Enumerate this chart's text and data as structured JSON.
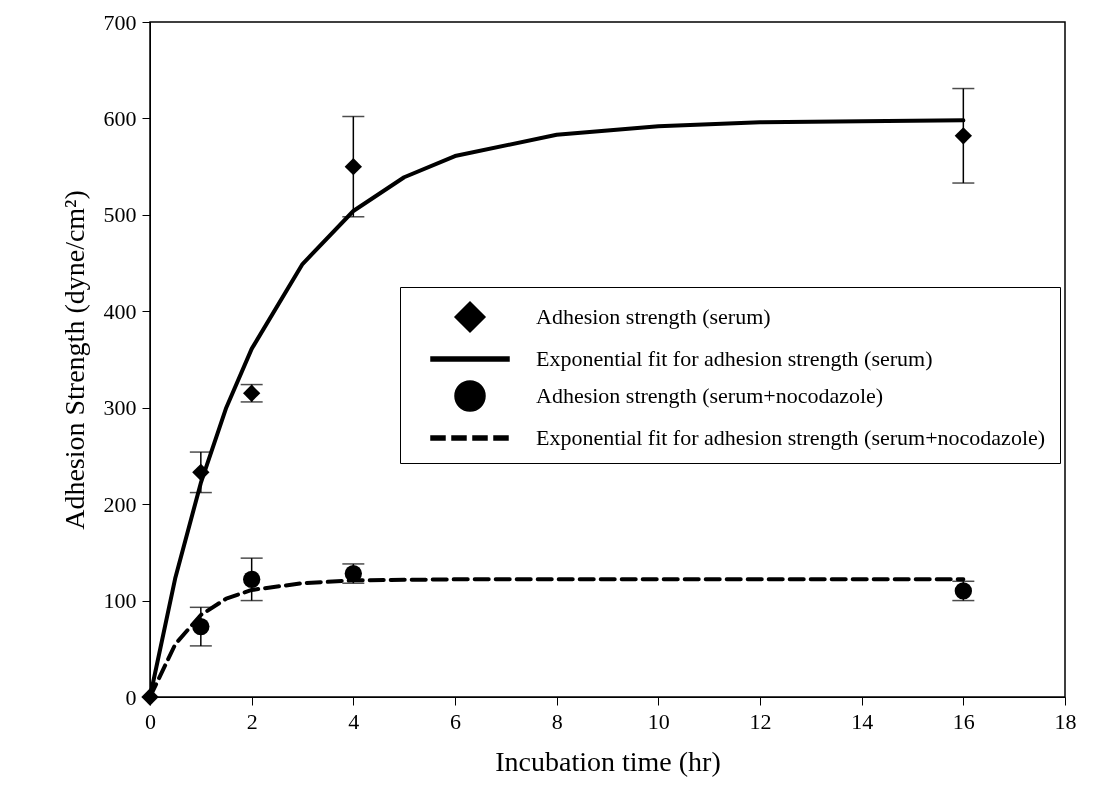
{
  "chart_data": {
    "type": "scatter",
    "xlabel": "Incubation time (hr)",
    "ylabel": "Adhesion Strength (dyne/cm²)",
    "xlim": [
      0,
      18
    ],
    "xticks": [
      0,
      2,
      4,
      6,
      8,
      10,
      12,
      14,
      16,
      18
    ],
    "ylim": [
      0,
      700
    ],
    "yticks": [
      0,
      100,
      200,
      300,
      400,
      500,
      600,
      700
    ],
    "grid": false,
    "legend": "right",
    "series": [
      {
        "name": "Adhesion strength (serum)",
        "marker": "diamond",
        "color": "#000000",
        "x": [
          0,
          1,
          2,
          4,
          16
        ],
        "values": [
          0,
          233,
          315,
          550,
          582
        ],
        "errors": [
          null,
          21,
          9,
          52,
          49
        ]
      },
      {
        "name": "Exponential fit for adhesion strength (serum)",
        "type": "line",
        "line_style": "solid",
        "color": "#000000",
        "x": [
          0,
          0.5,
          1,
          1.5,
          2,
          3,
          4,
          5,
          6,
          8,
          10,
          12,
          14,
          16
        ],
        "values": [
          0,
          124,
          222,
          300,
          361,
          449,
          504,
          539,
          561,
          583,
          592,
          596,
          597,
          598
        ]
      },
      {
        "name": "Adhesion strength (serum+nocodazole)",
        "marker": "circle",
        "color": "#000000",
        "x": [
          1,
          2,
          4,
          16
        ],
        "values": [
          73,
          122,
          128,
          110
        ],
        "errors": [
          20,
          22,
          10,
          10
        ]
      },
      {
        "name": "Exponential fit for adhesion strength (serum+nocodazole)",
        "type": "line",
        "line_style": "dashed",
        "color": "#000000",
        "x": [
          0,
          0.5,
          1,
          1.5,
          2,
          3,
          4,
          6,
          8,
          12,
          16
        ],
        "values": [
          0,
          55,
          85,
          102,
          111,
          118,
          121,
          122,
          122,
          122,
          122
        ]
      }
    ]
  }
}
